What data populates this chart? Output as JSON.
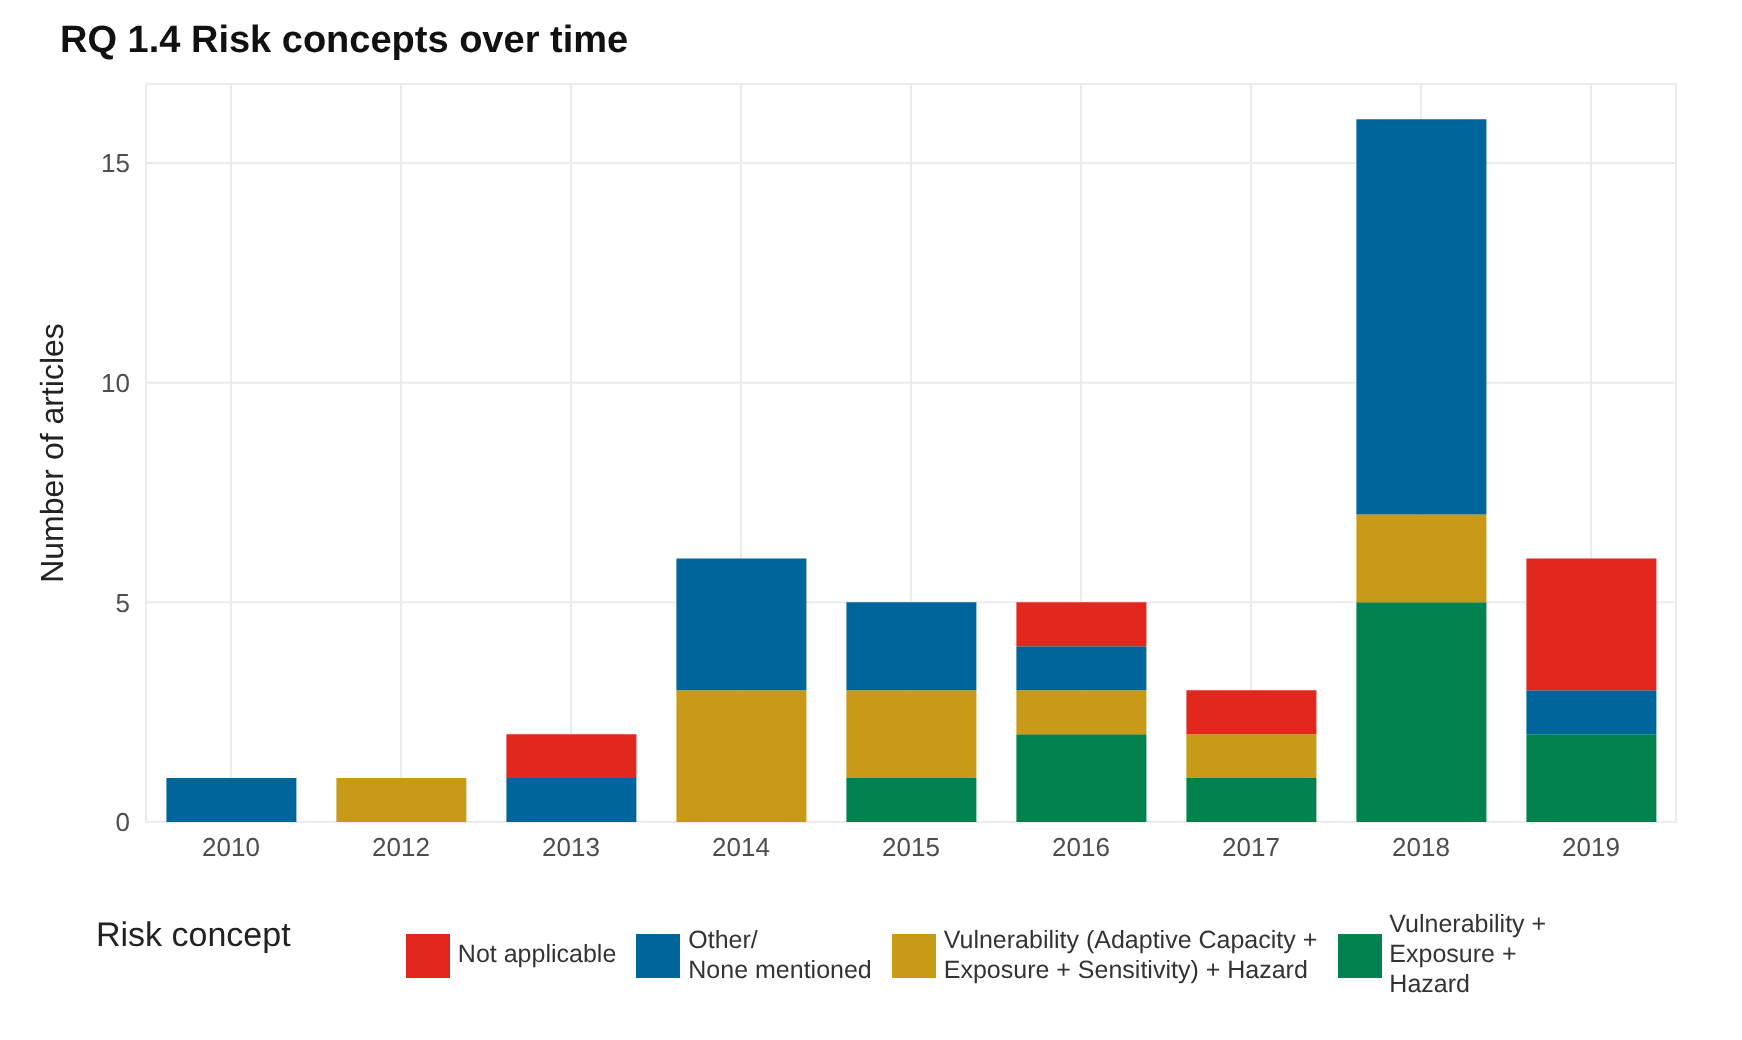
{
  "chart_data": {
    "type": "bar",
    "title": "RQ 1.4 Risk concepts over time",
    "ylabel": "Number of articles",
    "legend_title": "Risk concept",
    "categories": [
      "2010",
      "2012",
      "2013",
      "2014",
      "2015",
      "2016",
      "2017",
      "2018",
      "2019"
    ],
    "series": [
      {
        "name": "Vulnerability +\nExposure +\nHazard",
        "color": "#00814e",
        "values": [
          0,
          0,
          0,
          0,
          1,
          2,
          1,
          5,
          2
        ]
      },
      {
        "name": "Vulnerability (Adaptive Capacity +\nExposure + Sensitivity) + Hazard",
        "color": "#c99a17",
        "values": [
          0,
          1,
          0,
          3,
          2,
          1,
          1,
          2,
          0
        ]
      },
      {
        "name": "Other/\nNone mentioned",
        "color": "#00659b",
        "values": [
          1,
          0,
          1,
          3,
          2,
          1,
          0,
          9,
          1
        ]
      },
      {
        "name": "Not applicable",
        "color": "#e2271f",
        "values": [
          0,
          0,
          1,
          0,
          0,
          1,
          1,
          0,
          3
        ]
      }
    ],
    "stacked": true,
    "ylim": [
      0,
      16.8
    ],
    "yticks": [
      0,
      5,
      10,
      15
    ],
    "grid": true,
    "legend": "bottom"
  }
}
